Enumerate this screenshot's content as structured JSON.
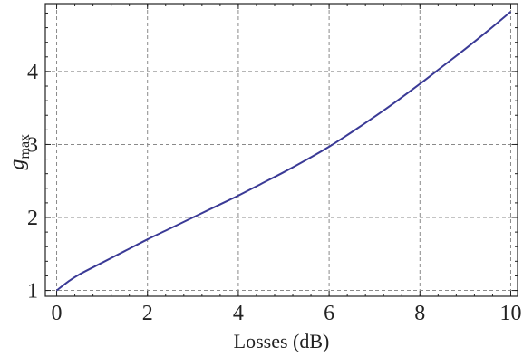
{
  "chart_data": {
    "type": "line",
    "xlabel": "Losses (dB)",
    "ylabel": {
      "main": "g",
      "sub": "max"
    },
    "xlim": [
      -0.25,
      10.15
    ],
    "ylim": [
      0.92,
      4.93
    ],
    "x_ticks": [
      0,
      2,
      4,
      6,
      8,
      10
    ],
    "x_tick_labels": [
      "0",
      "2",
      "4",
      "6",
      "8",
      "10"
    ],
    "y_ticks": [
      1,
      2,
      3,
      4
    ],
    "y_tick_labels": [
      "1",
      "2",
      "3",
      "4"
    ],
    "grid": true,
    "series": [
      {
        "color": "#3a3a96",
        "x": [
          0,
          0.25,
          0.5,
          1,
          1.5,
          2,
          2.5,
          3,
          3.5,
          4,
          4.5,
          5,
          5.5,
          6,
          6.5,
          7,
          7.5,
          8,
          8.5,
          9,
          9.5,
          10
        ],
        "y": [
          1.0,
          1.12,
          1.22,
          1.38,
          1.54,
          1.7,
          1.85,
          2.0,
          2.15,
          2.3,
          2.46,
          2.62,
          2.79,
          2.97,
          3.17,
          3.38,
          3.6,
          3.83,
          4.07,
          4.31,
          4.56,
          4.82
        ]
      }
    ]
  }
}
